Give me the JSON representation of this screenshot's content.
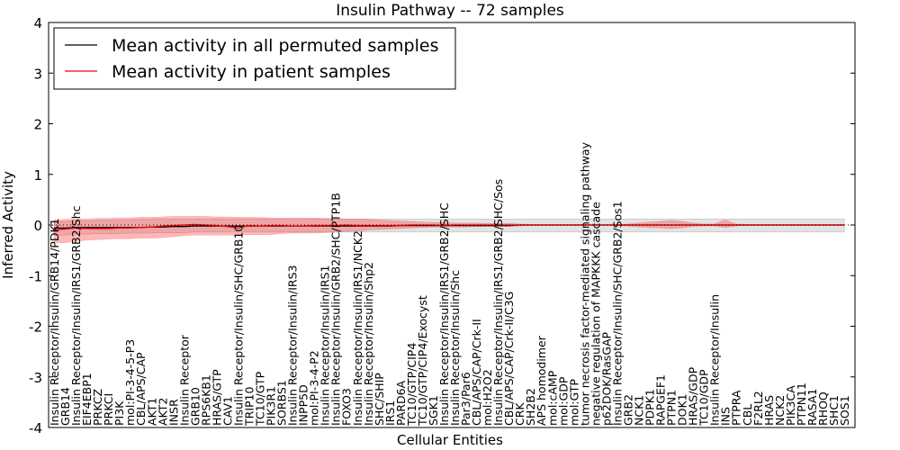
{
  "chart_data": {
    "type": "line",
    "title": "Insulin Pathway -- 72 samples",
    "xlabel": "Cellular Entities",
    "ylabel": "Inferred Activity",
    "ylim": [
      -4,
      4
    ],
    "yticks": [
      -4,
      -3,
      -2,
      -1,
      0,
      1,
      2,
      3,
      4
    ],
    "grid": false,
    "legend_position": "top-left",
    "categories": [
      "Insulin Receptor/Insulin/GRB14/PDK1",
      "GRB14",
      "Insulin Receptor/Insulin/IRS1/GRB2/Shc",
      "EIF4EBP1",
      "PRKCZ",
      "PRKCI",
      "PI3K",
      "mol:PI-3-4-5-P3",
      "CBL/APS/CAP",
      "AKT1",
      "AKT2",
      "INSR",
      "Insulin Receptor",
      "GRB10",
      "RPS6KB1",
      "HRAS/GTP",
      "CAV1",
      "Insulin Receptor/Insulin/SHC/GRB10",
      "TRIP10",
      "TC10/GTP",
      "PIK3R1",
      "SORBS1",
      "Insulin Receptor/Insulin/IRS3",
      "INPP5D",
      "mol:PI-3-4-P2",
      "Insulin Receptor/Insulin/IRS1",
      "Insulin Receptor/Insulin/GRB2/SHC/PTP1B",
      "FOXO3",
      "Insulin Receptor/Insulin/IRS1/NCK2",
      "Insulin Receptor/Insulin/Shp2",
      "SHC/SHIP",
      "IRS1",
      "PARD6A",
      "TC10/GTP/CIP4",
      "TC10/GTP/CIP4/Exocyst",
      "SGK1",
      "Insulin Receptor/Insulin/IRS1/GRB2/SHC",
      "Insulin Receptor/Insulin/Shc",
      "Par3/Par6",
      "CBL/APS/CAP/Crk-II",
      "mol:H2O2",
      "Insulin Receptor/Insulin/IRS1/GRB2/SHC/Sos",
      "CBL/APS/CAP/Crk-II/C3G",
      "CRK",
      "SH2B2",
      "APS homodimer",
      "mol:cAMP",
      "mol:GDP",
      "mol:GTP",
      "tumor necrosis factor-mediated signaling pathway",
      "negative regulation of MAPKKK cascade",
      "p62DOK/RasGAP",
      "Insulin Receptor/Insulin/SHC/GRB2/Sos1",
      "GRB2",
      "NCK1",
      "PDPK1",
      "RAPGEF1",
      "PTPN1",
      "DOK1",
      "HRAS/GDP",
      "TC10/GDP",
      "Insulin Receptor/Insulin",
      "INS",
      "PTPRA",
      "CBL",
      "F2RL2",
      "HRAS",
      "NCK2",
      "PIK3CA",
      "PTPN11",
      "RASA1",
      "RHOQ",
      "SHC1",
      "SOS1"
    ],
    "series": [
      {
        "name": "Mean activity in all permuted samples",
        "color": "#000000",
        "values": [
          -0.06,
          -0.06,
          -0.05,
          -0.05,
          -0.05,
          -0.05,
          -0.05,
          -0.05,
          -0.05,
          -0.04,
          -0.04,
          -0.03,
          -0.03,
          -0.02,
          -0.02,
          -0.02,
          -0.02,
          -0.02,
          -0.02,
          -0.02,
          -0.02,
          -0.02,
          -0.02,
          -0.02,
          -0.02,
          -0.02,
          -0.02,
          -0.02,
          -0.02,
          -0.02,
          -0.02,
          -0.02,
          -0.01,
          -0.01,
          -0.01,
          -0.01,
          -0.01,
          -0.01,
          -0.01,
          -0.01,
          -0.01,
          -0.01,
          -0.01,
          0,
          0,
          0,
          0,
          0,
          0,
          0,
          0,
          0,
          0,
          0,
          0,
          0,
          0,
          0,
          0,
          0,
          0,
          0,
          0,
          0,
          0,
          0,
          0,
          0,
          0,
          0,
          0,
          0,
          0,
          0
        ],
        "band_lower": [
          -0.2,
          -0.2,
          -0.18,
          -0.18,
          -0.17,
          -0.17,
          -0.17,
          -0.16,
          -0.16,
          -0.16,
          -0.15,
          -0.15,
          -0.15,
          -0.14,
          -0.14,
          -0.14,
          -0.14,
          -0.14,
          -0.14,
          -0.14,
          -0.14,
          -0.14,
          -0.14,
          -0.14,
          -0.14,
          -0.14,
          -0.14,
          -0.14,
          -0.14,
          -0.14,
          -0.14,
          -0.14,
          -0.14,
          -0.14,
          -0.14,
          -0.14,
          -0.14,
          -0.14,
          -0.14,
          -0.14,
          -0.14,
          -0.14,
          -0.14,
          -0.14,
          -0.14,
          -0.14,
          -0.14,
          -0.14,
          -0.14,
          -0.14,
          -0.14,
          -0.14,
          -0.14,
          -0.14,
          -0.14,
          -0.14,
          -0.14,
          -0.14,
          -0.14,
          -0.14,
          -0.14,
          -0.14,
          -0.14,
          -0.14,
          -0.14,
          -0.14,
          -0.14,
          -0.14,
          -0.14,
          -0.14,
          -0.14,
          -0.14,
          -0.14,
          -0.14
        ],
        "band_upper": [
          0.06,
          0.07,
          0.08,
          0.08,
          0.09,
          0.1,
          0.1,
          0.1,
          0.11,
          0.11,
          0.12,
          0.12,
          0.12,
          0.12,
          0.12,
          0.12,
          0.12,
          0.12,
          0.12,
          0.12,
          0.12,
          0.12,
          0.12,
          0.12,
          0.12,
          0.12,
          0.12,
          0.12,
          0.12,
          0.12,
          0.12,
          0.12,
          0.12,
          0.12,
          0.12,
          0.12,
          0.12,
          0.12,
          0.12,
          0.12,
          0.12,
          0.12,
          0.12,
          0.12,
          0.12,
          0.12,
          0.12,
          0.12,
          0.12,
          0.12,
          0.12,
          0.12,
          0.12,
          0.12,
          0.12,
          0.12,
          0.12,
          0.12,
          0.12,
          0.12,
          0.12,
          0.12,
          0.12,
          0.12,
          0.12,
          0.12,
          0.12,
          0.12,
          0.12,
          0.12,
          0.12,
          0.12,
          0.12,
          0.12
        ]
      },
      {
        "name": "Mean activity in patient samples",
        "color": "#ff0000",
        "values": [
          -0.1,
          -0.08,
          -0.06,
          -0.07,
          -0.07,
          -0.07,
          -0.06,
          -0.06,
          -0.05,
          -0.04,
          -0.02,
          -0.01,
          0,
          0.01,
          0,
          -0.01,
          -0.03,
          -0.06,
          -0.01,
          -0.02,
          -0.01,
          -0.01,
          -0.02,
          -0.02,
          -0.01,
          -0.01,
          -0.01,
          0,
          -0.01,
          -0.01,
          -0.01,
          -0.01,
          -0.01,
          0,
          0,
          0,
          -0.01,
          0,
          0,
          0,
          0,
          0,
          0,
          0,
          0,
          0,
          0,
          0,
          0,
          0,
          0,
          0,
          0,
          0,
          0,
          0,
          0,
          0,
          0,
          0,
          0,
          0,
          0,
          0,
          0,
          0,
          0,
          0,
          0,
          0,
          0,
          0,
          0,
          0
        ],
        "band_lower": [
          -0.35,
          -0.35,
          -0.32,
          -0.3,
          -0.29,
          -0.28,
          -0.27,
          -0.27,
          -0.26,
          -0.26,
          -0.25,
          -0.23,
          -0.21,
          -0.2,
          -0.2,
          -0.2,
          -0.2,
          -0.2,
          -0.19,
          -0.19,
          -0.19,
          -0.17,
          -0.16,
          -0.16,
          -0.16,
          -0.15,
          -0.14,
          -0.13,
          -0.12,
          -0.1,
          -0.09,
          -0.08,
          -0.07,
          -0.06,
          -0.05,
          -0.04,
          -0.04,
          -0.04,
          -0.04,
          -0.03,
          -0.03,
          -0.03,
          -0.03,
          -0.02,
          -0.01,
          -0.01,
          -0.01,
          -0.01,
          -0.01,
          -0.01,
          -0.01,
          -0.01,
          -0.01,
          -0.02,
          -0.04,
          -0.05,
          -0.06,
          -0.07,
          -0.06,
          -0.03,
          -0.02,
          -0.02,
          -0.05,
          -0.02,
          -0.01,
          -0.01,
          -0.01,
          -0.01,
          -0.01,
          -0.01,
          -0.01,
          -0.01,
          -0.01,
          -0.01
        ],
        "band_upper": [
          0.1,
          0.11,
          0.12,
          0.12,
          0.13,
          0.13,
          0.14,
          0.14,
          0.15,
          0.15,
          0.16,
          0.17,
          0.17,
          0.17,
          0.17,
          0.16,
          0.16,
          0.15,
          0.15,
          0.15,
          0.14,
          0.14,
          0.14,
          0.14,
          0.14,
          0.13,
          0.13,
          0.12,
          0.12,
          0.11,
          0.1,
          0.09,
          0.08,
          0.07,
          0.06,
          0.05,
          0.05,
          0.04,
          0.04,
          0.04,
          0.03,
          0.03,
          0.03,
          0.02,
          0.01,
          0.01,
          0.01,
          0.01,
          0.01,
          0.01,
          0.01,
          0.01,
          0.01,
          0.02,
          0.04,
          0.06,
          0.07,
          0.09,
          0.07,
          0.04,
          0.02,
          0.02,
          0.1,
          0.02,
          0.01,
          0.01,
          0.01,
          0.01,
          0.01,
          0.01,
          0.01,
          0.01,
          0.01,
          0.01
        ]
      }
    ]
  }
}
